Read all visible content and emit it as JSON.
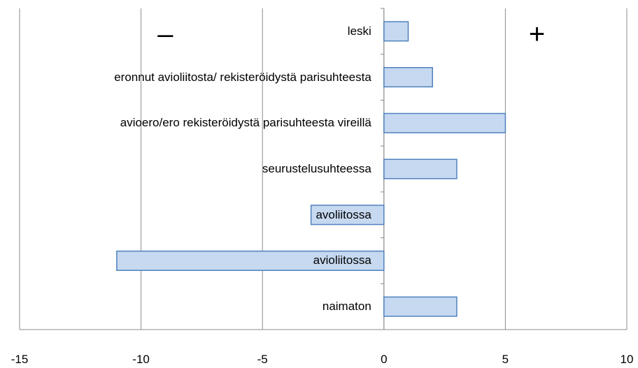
{
  "chart_data": {
    "type": "barh",
    "categories": [
      "leski",
      "eronnut avioliitosta/ rekisteröidystä parisuhteesta",
      "avioero/ero rekisteröidystä parisuhteesta vireillä",
      "seurustelusuhteessa",
      "avoliitossa",
      "avioliitossa",
      "naimaton"
    ],
    "values": [
      1,
      2,
      5,
      3,
      -3,
      -11,
      3
    ],
    "color": "#c6d9f1",
    "edge_color": "#4f81bd",
    "xlim": [
      -15,
      10
    ],
    "xticks": [
      -15,
      -10,
      -5,
      0,
      5,
      10
    ],
    "grid": true,
    "annotations": [
      {
        "text": "–",
        "x": -9
      },
      {
        "text": "+",
        "x": 6.3
      }
    ]
  }
}
